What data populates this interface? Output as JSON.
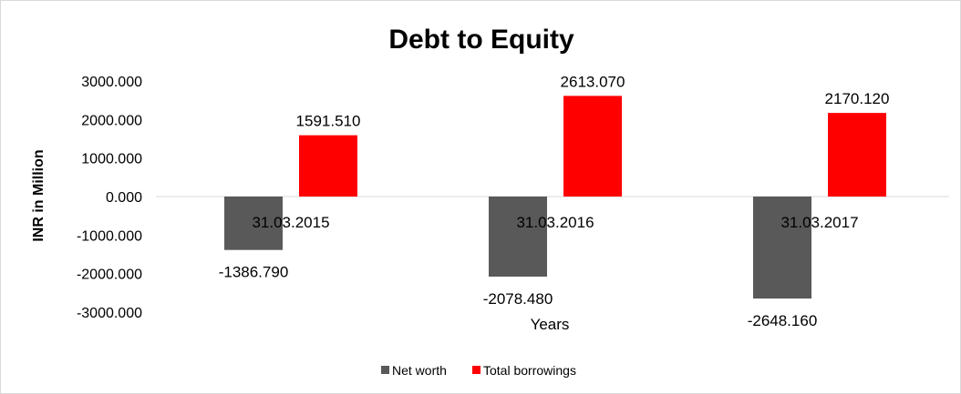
{
  "chart_data": {
    "type": "bar",
    "title": "Debt to Equity",
    "xlabel": "Years",
    "ylabel": "INR in Million",
    "categories": [
      "31.03.2015",
      "31.03.2016",
      "31.03.2017"
    ],
    "series": [
      {
        "name": "Net worth",
        "color": "#595959",
        "values": [
          -1386.79,
          -2078.48,
          -2648.16
        ],
        "labels": [
          "-1386.790",
          "-2078.480",
          "-2648.160"
        ]
      },
      {
        "name": "Total borrowings",
        "color": "#ff0000",
        "values": [
          1591.51,
          2613.07,
          2170.12
        ],
        "labels": [
          "1591.510",
          "2613.070",
          "2170.120"
        ]
      }
    ],
    "ylim": [
      -3000,
      3000
    ],
    "yticks": [
      3000,
      2000,
      1000,
      0,
      -1000,
      -2000,
      -3000
    ],
    "ytick_labels": [
      "3000.000",
      "2000.000",
      "1000.000",
      "0.000",
      "-1000.000",
      "-2000.000",
      "-3000.000"
    ],
    "grid": false,
    "legend": "bottom"
  }
}
